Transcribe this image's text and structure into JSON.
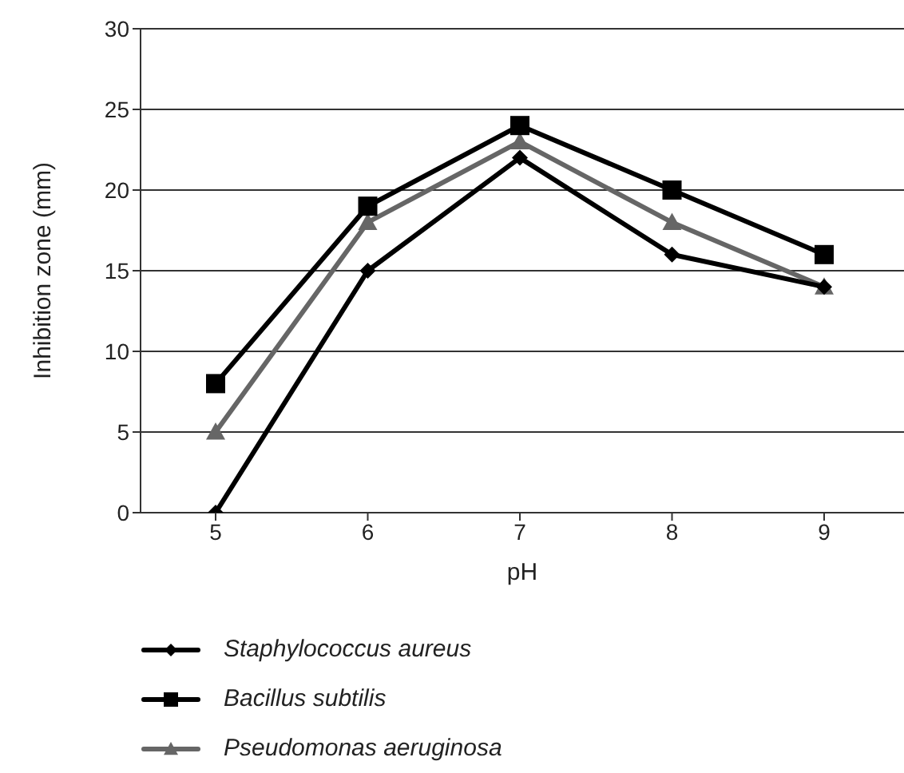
{
  "chart_data": {
    "type": "line",
    "xlabel": "pH",
    "ylabel": "Inhibition zone (mm)",
    "categories": [
      "5",
      "6",
      "7",
      "8",
      "9"
    ],
    "series": [
      {
        "name": "Staphylococcus aureus",
        "color": "#000000",
        "marker": "diamond",
        "values": [
          0,
          15,
          22,
          16,
          14
        ]
      },
      {
        "name": "Bacillus subtilis",
        "color": "#000000",
        "marker": "square",
        "values": [
          8,
          19,
          24,
          20,
          16
        ]
      },
      {
        "name": "Pseudomonas aeruginosa",
        "color": "#666666",
        "marker": "triangle",
        "values": [
          5,
          18,
          23,
          18,
          14
        ]
      }
    ],
    "ylim": [
      0,
      30
    ],
    "yticks": [
      0,
      5,
      10,
      15,
      20,
      25,
      30
    ],
    "grid": "y",
    "legend": "bottom",
    "line_style": "solid"
  }
}
